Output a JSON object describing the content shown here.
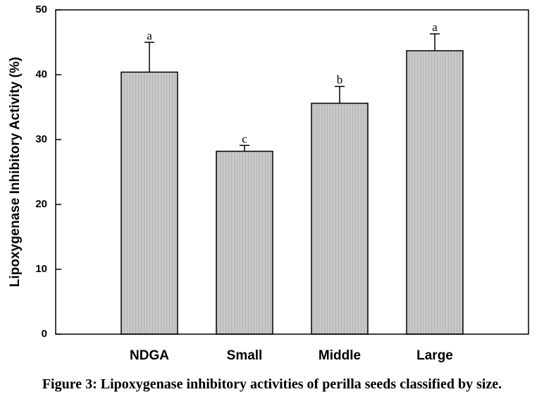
{
  "chart_data": {
    "type": "bar",
    "categories": [
      "NDGA",
      "Small",
      "Middle",
      "Large"
    ],
    "values": [
      40.4,
      28.2,
      35.6,
      43.7
    ],
    "errors": [
      4.6,
      0.9,
      2.6,
      2.6
    ],
    "significance": [
      "a",
      "c",
      "b",
      "a"
    ],
    "ylabel": "Lipoxygenase Inhibitory Activity (%)",
    "xlabel": "",
    "ylim": [
      0,
      50
    ],
    "yticks": [
      0,
      10,
      20,
      30,
      40,
      50
    ],
    "grid": false,
    "bar_color": "#c8c8c8",
    "bar_stripe_color": "#b4b4b4"
  },
  "caption": "Figure 3: Lipoxygenase inhibitory activities of perilla seeds classified by size."
}
